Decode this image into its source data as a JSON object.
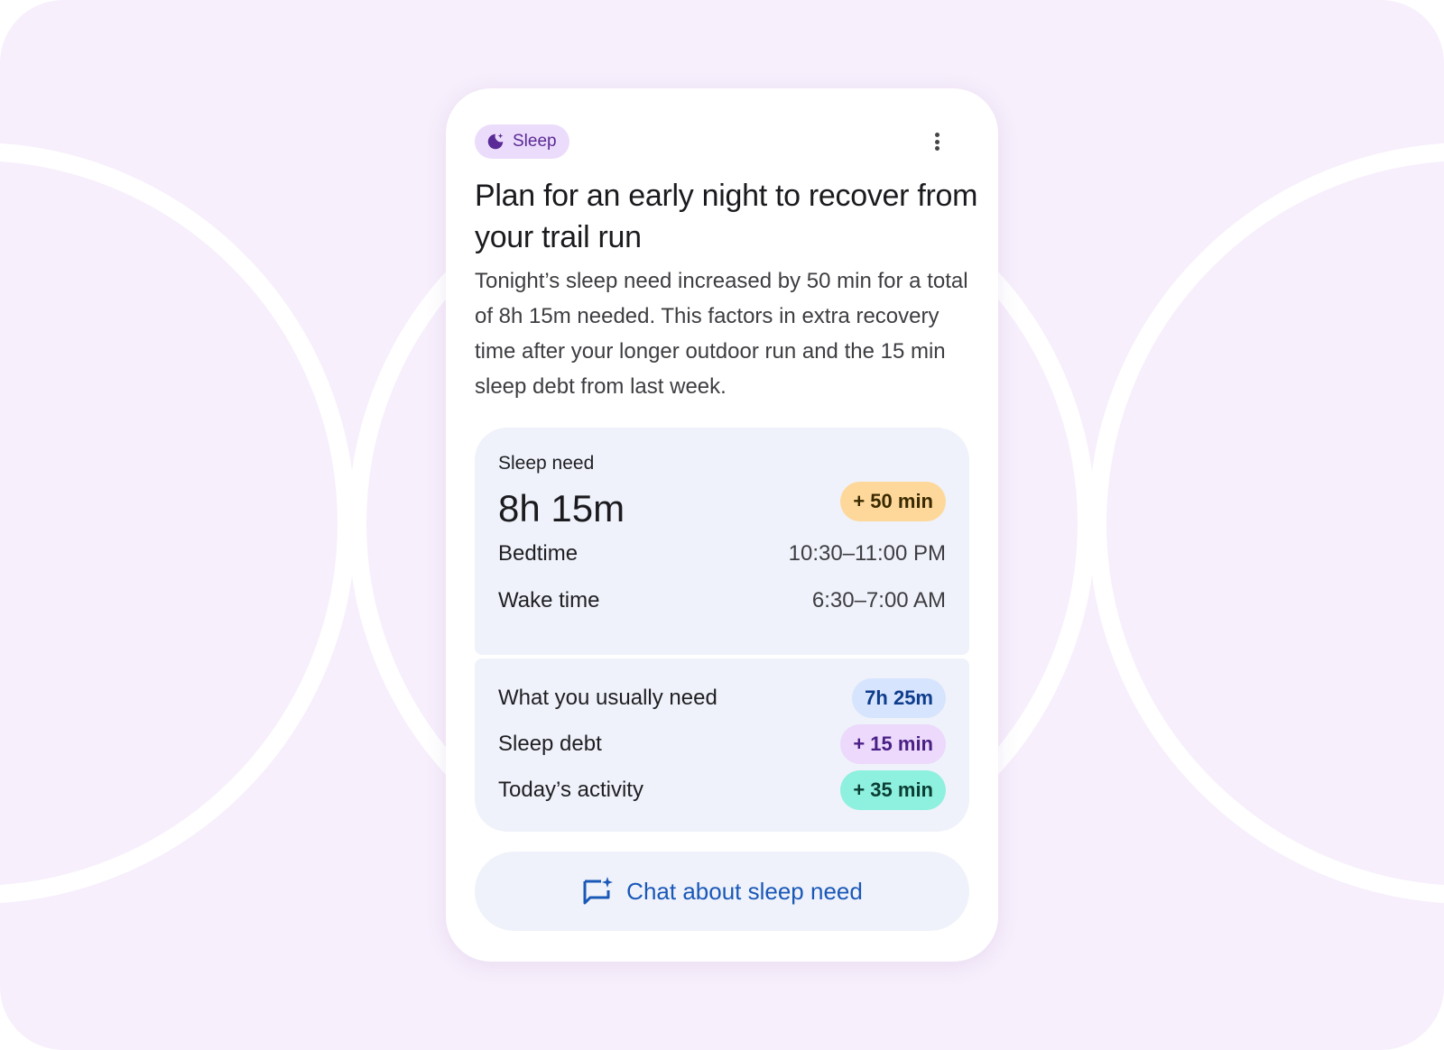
{
  "colors": {
    "background": "#f7effc",
    "card": "#ffffff",
    "panel": "#eff2fa",
    "accent_blue": "#1a58b8",
    "chip_bg": "#ecdcfb",
    "chip_fg": "#5a2a96"
  },
  "chip": {
    "label": "Sleep",
    "icon": "moon-sparkle-icon"
  },
  "menu_icon": "more-vert-icon",
  "title": "Plan for an early night to recover from your trail run",
  "description": "Tonight’s sleep need increased by 50 min for a total of 8h 15m needed. This factors in extra recovery time after your longer outdoor run and the 15 min sleep debt from last week.",
  "sleep_need": {
    "label": "Sleep need",
    "value": "8h 15m",
    "change": "+ 50 min",
    "change_color": "#fdd89a",
    "change_text_color": "#3a2a00",
    "bedtime": {
      "label": "Bedtime",
      "value": "10:30–11:00 PM"
    },
    "wake_time": {
      "label": "Wake time",
      "value": "6:30–7:00 AM"
    }
  },
  "breakdown": [
    {
      "label": "What you usually need",
      "value": "7h 25m",
      "bg": "#d6e4fd",
      "fg": "#0e3d8c"
    },
    {
      "label": "Sleep debt",
      "value": "+ 15 min",
      "bg": "#ecd9fb",
      "fg": "#4a1f86"
    },
    {
      "label": "Today’s activity",
      "value": "+ 35 min",
      "bg": "#8ef0de",
      "fg": "#0b3d33"
    }
  ],
  "chat_button": {
    "label": "Chat about sleep need",
    "icon": "chat-spark-icon"
  }
}
